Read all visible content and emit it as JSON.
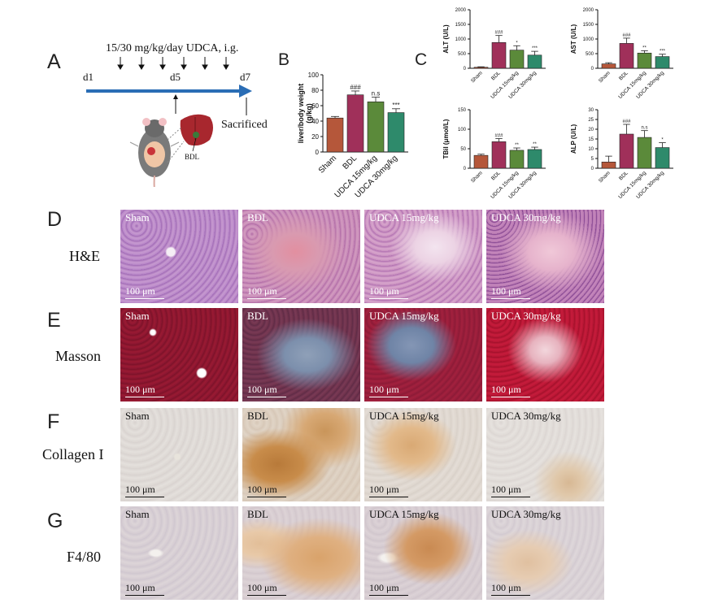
{
  "panels": {
    "A": "A",
    "B": "B",
    "C": "C",
    "D": "D",
    "E": "E",
    "F": "F",
    "G": "G"
  },
  "timeline": {
    "dose": "15/30 mg/kg/day UDCA, i.g.",
    "d1": "d1",
    "d5": "d5",
    "d7": "d7",
    "sacrificed": "Sacrificed",
    "bdl": "BDL"
  },
  "colors": {
    "sham": "#b5573a",
    "bdl": "#a0305a",
    "udca15": "#5b8a3a",
    "udca30": "#2e8a6b",
    "arrow": "#2a6db5"
  },
  "chart_data": [
    {
      "panel": "B",
      "type": "bar",
      "ylabel": "liver/body weight (g/kg)",
      "categories": [
        "Sham",
        "BDL",
        "UDCA 15mg/kg",
        "UDCA 30mg/kg"
      ],
      "values": [
        44,
        74,
        65,
        51
      ],
      "errors": [
        2,
        5,
        6,
        5
      ],
      "sig": [
        "",
        "###",
        "n.s",
        "***"
      ],
      "ylim": [
        0,
        100
      ],
      "yticks": [
        "0",
        "20",
        "40",
        "60",
        "80",
        "100"
      ]
    },
    {
      "panel": "C",
      "type": "bar",
      "ylabel": "ALT (U/L)",
      "categories": [
        "Sham",
        "BDL",
        "UDCA 15mg/kg",
        "UDCA 30mg/kg"
      ],
      "values": [
        35,
        880,
        620,
        450
      ],
      "errors": [
        15,
        240,
        150,
        130
      ],
      "sig": [
        "",
        "###",
        "*",
        "***"
      ],
      "ylim": [
        0,
        2000
      ],
      "yticks": [
        "0",
        "500",
        "1000",
        "1500",
        "2000"
      ]
    },
    {
      "panel": "C",
      "type": "bar",
      "ylabel": "AST (U/L)",
      "categories": [
        "Sham",
        "BDL",
        "UDCA 15mg/kg",
        "UDCA 30mg/kg"
      ],
      "values": [
        150,
        850,
        520,
        400
      ],
      "errors": [
        40,
        180,
        80,
        80
      ],
      "sig": [
        "",
        "###",
        "**",
        "***"
      ],
      "ylim": [
        0,
        2000
      ],
      "yticks": [
        "0",
        "500",
        "1000",
        "1500",
        "2000"
      ]
    },
    {
      "panel": "C",
      "type": "bar",
      "ylabel": "TBil (μmol/L)",
      "categories": [
        "Sham",
        "BDL",
        "UDCA 15mg/kg",
        "UDCA 30mg/kg"
      ],
      "values": [
        33,
        68,
        46,
        48
      ],
      "errors": [
        3,
        8,
        6,
        6
      ],
      "sig": [
        "",
        "###",
        "**",
        "**"
      ],
      "ylim": [
        0,
        150
      ],
      "yticks": [
        "0",
        "50",
        "100",
        "150"
      ]
    },
    {
      "panel": "C",
      "type": "bar",
      "ylabel": "ALP (U/L)",
      "categories": [
        "Sham",
        "BDL",
        "UDCA 15mg/kg",
        "UDCA 30mg/kg"
      ],
      "values": [
        3.2,
        17.5,
        15.8,
        10.6
      ],
      "errors": [
        3,
        5,
        3.5,
        2.5
      ],
      "sig": [
        "",
        "###",
        "n.s",
        "*"
      ],
      "ylim": [
        0,
        30
      ],
      "yticks": [
        "0",
        "5",
        "10",
        "15",
        "20",
        "25",
        "30"
      ]
    }
  ],
  "histology": {
    "rows": [
      {
        "label": "H&E",
        "panel": "D"
      },
      {
        "label": "Masson",
        "panel": "E"
      },
      {
        "label": "Collagen I",
        "panel": "F"
      },
      {
        "label": "F4/80",
        "panel": "G"
      }
    ],
    "groups": [
      "Sham",
      "BDL",
      "UDCA 15mg/kg",
      "UDCA 30mg/kg"
    ],
    "scale_bar": "100 μm"
  }
}
